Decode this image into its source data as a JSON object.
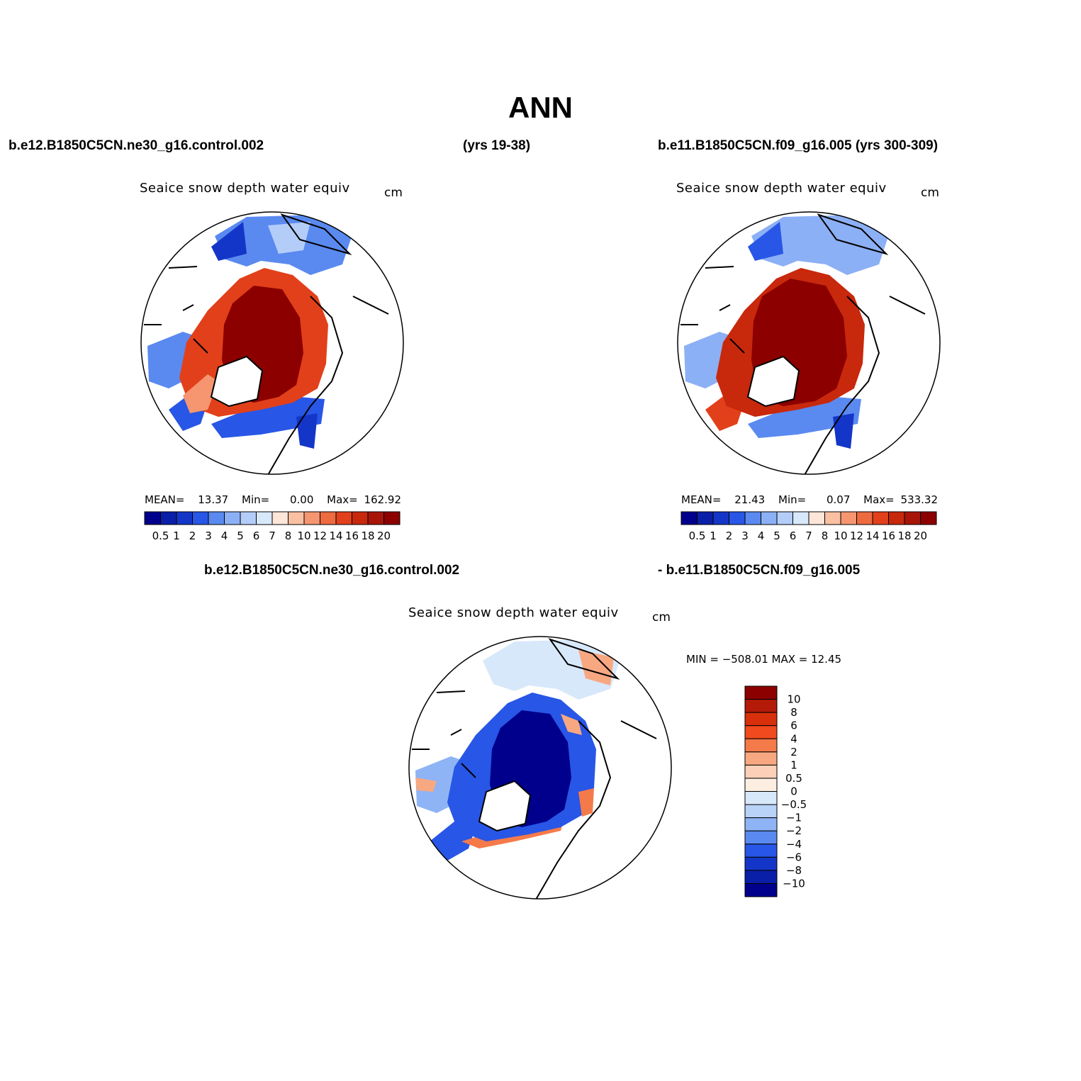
{
  "title": "ANN",
  "top_left_case": "b.e12.B1850C5CN.ne30_g16.control.002",
  "top_mid_years": "(yrs 19-38)",
  "top_right_case": "b.e11.B1850C5CN.f09_g16.005 (yrs 300-309)",
  "diff_case_a": "b.e12.B1850C5CN.ne30_g16.control.002",
  "diff_case_b": "- b.e11.B1850C5CN.f09_g16.005",
  "panels": [
    {
      "variable": "Seaice snow depth water equiv",
      "units": "cm",
      "stats": {
        "mean_label": "MEAN=",
        "mean": "13.37",
        "min_label": "Min=",
        "min": "0.00",
        "max_label": "Max=",
        "max": "162.92"
      }
    },
    {
      "variable": "Seaice snow depth water equiv",
      "units": "cm",
      "stats": {
        "mean_label": "MEAN=",
        "mean": "21.43",
        "min_label": "Min=",
        "min": "0.07",
        "max_label": "Max=",
        "max": "533.32"
      }
    }
  ],
  "diff_panel": {
    "variable": "Seaice snow depth water equiv",
    "units": "cm",
    "min_max": "MIN = −508.01  MAX =   12.45"
  },
  "abs_colorbar": {
    "labels": [
      "0.5",
      "1",
      "2",
      "3",
      "4",
      "5",
      "6",
      "7",
      "8",
      "10",
      "12",
      "14",
      "16",
      "18",
      "20"
    ],
    "colors": [
      "#00008c",
      "#0a1fa8",
      "#1436c8",
      "#2856e6",
      "#5a8af0",
      "#8cb0f5",
      "#b4cdf8",
      "#d8e8fb",
      "#fde6d8",
      "#f9c0a2",
      "#f59670",
      "#ee6a3f",
      "#e2401a",
      "#c8280c",
      "#a81508",
      "#8c0000"
    ]
  },
  "diff_colorbar": {
    "labels": [
      "10",
      "8",
      "6",
      "4",
      "2",
      "1",
      "0.5",
      "0",
      "−0.5",
      "−1",
      "−2",
      "−4",
      "−6",
      "−8",
      "−10"
    ],
    "colors": [
      "#8c0000",
      "#b41a08",
      "#d8300a",
      "#f04a1e",
      "#f57a4a",
      "#f8a880",
      "#fcd0b8",
      "#fdeee2",
      "#d8e8fb",
      "#b8d2f8",
      "#8eb4f5",
      "#5a8af0",
      "#2856e6",
      "#1436c8",
      "#0a1fa8",
      "#00008c"
    ]
  }
}
